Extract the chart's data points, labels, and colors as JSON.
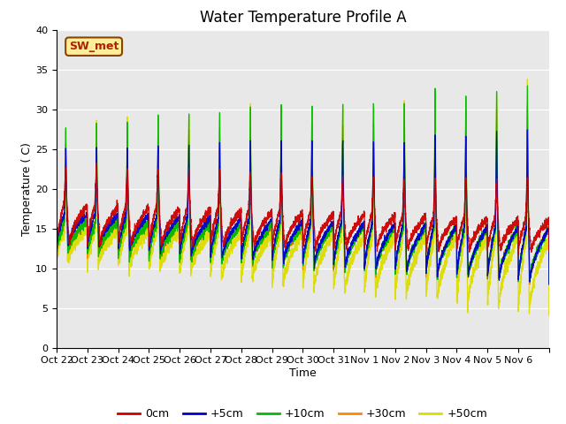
{
  "title": "Water Temperature Profile A",
  "xlabel": "Time",
  "ylabel": "Temperature ( C)",
  "ylim": [
    0,
    40
  ],
  "yticks": [
    0,
    5,
    10,
    15,
    20,
    25,
    30,
    35,
    40
  ],
  "annotation_text": "SW_met",
  "annotation_bg": "#ffee99",
  "annotation_border": "#884400",
  "annotation_text_color": "#aa2200",
  "background_color": "#e8e8e8",
  "xtick_labels": [
    "Oct 22",
    "Oct 23",
    "Oct 24",
    "Oct 25",
    "Oct 26",
    "Oct 27",
    "Oct 28",
    "Oct 29",
    "Oct 30",
    "Oct 31",
    "Nov 1",
    "Nov 2",
    "Nov 3",
    "Nov 4",
    "Nov 5",
    "Nov 6"
  ],
  "n_days": 16,
  "title_fontsize": 12,
  "axis_label_fontsize": 9,
  "tick_fontsize": 8,
  "series": {
    "0cm": {
      "color": "#cc0000",
      "label": "0cm"
    },
    "+5cm": {
      "color": "#0000cc",
      "label": "+5cm"
    },
    "+10cm": {
      "color": "#00bb00",
      "label": "+10cm"
    },
    "+30cm": {
      "color": "#ff8800",
      "label": "+30cm"
    },
    "+50cm": {
      "color": "#dddd00",
      "label": "+50cm"
    }
  }
}
